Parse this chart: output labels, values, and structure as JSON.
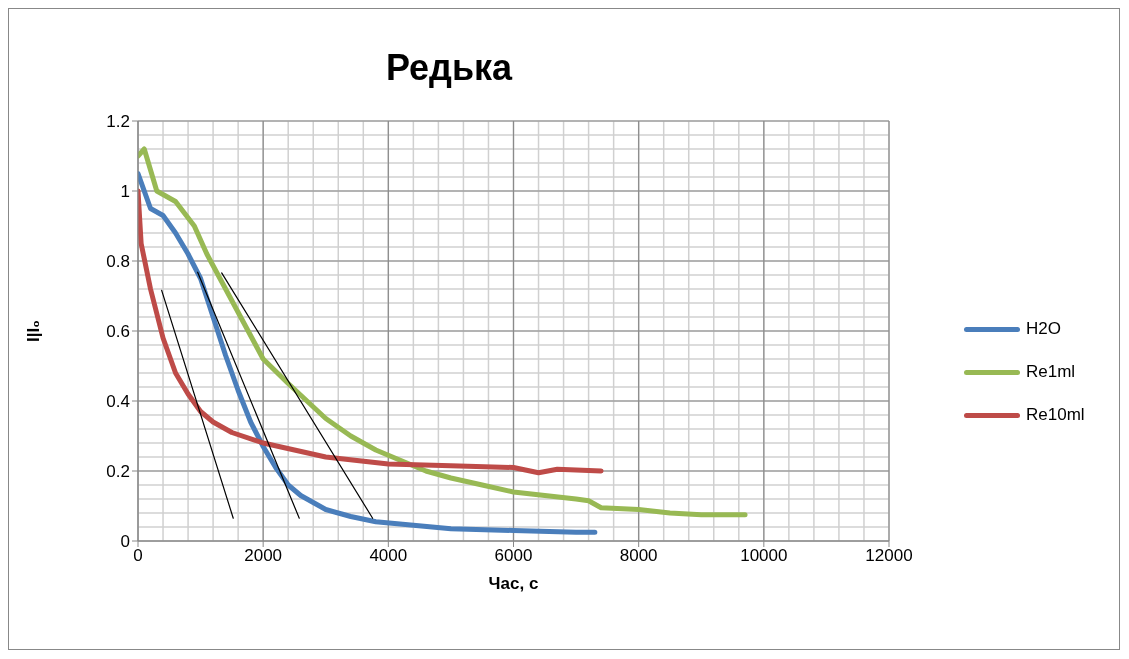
{
  "chart_data": {
    "type": "line",
    "title": "Редька",
    "xlabel": "Час, с",
    "ylabel": "I|I₀",
    "xlim": [
      0,
      12000
    ],
    "xticks": [
      0,
      2000,
      4000,
      6000,
      8000,
      10000,
      12000
    ],
    "ylim": [
      0,
      1.2
    ],
    "yticks": [
      0,
      0.2,
      0.4,
      0.6,
      0.8,
      1,
      1.2
    ],
    "grid": true,
    "legend": "right",
    "series": [
      {
        "name": "H2O",
        "color": "#4a7ebb",
        "x": [
          0,
          200,
          400,
          600,
          800,
          1000,
          1200,
          1400,
          1600,
          1800,
          2000,
          2200,
          2400,
          2600,
          2800,
          3000,
          3400,
          3800,
          4400,
          5000,
          6000,
          7000,
          7300
        ],
        "values": [
          1.05,
          0.95,
          0.93,
          0.88,
          0.82,
          0.75,
          0.64,
          0.53,
          0.43,
          0.34,
          0.27,
          0.21,
          0.16,
          0.13,
          0.11,
          0.09,
          0.07,
          0.055,
          0.045,
          0.035,
          0.03,
          0.025,
          0.025
        ]
      },
      {
        "name": "Re1ml",
        "color": "#98b954",
        "x": [
          0,
          100,
          300,
          600,
          900,
          1100,
          1400,
          1700,
          2000,
          2400,
          2700,
          3000,
          3400,
          3800,
          4200,
          4600,
          5000,
          5500,
          6000,
          6500,
          7000,
          7200,
          7400,
          8000,
          8500,
          9000,
          9700
        ],
        "values": [
          1.1,
          1.12,
          1.0,
          0.97,
          0.9,
          0.82,
          0.72,
          0.62,
          0.52,
          0.45,
          0.4,
          0.35,
          0.3,
          0.26,
          0.23,
          0.2,
          0.18,
          0.16,
          0.14,
          0.13,
          0.12,
          0.115,
          0.095,
          0.09,
          0.08,
          0.075,
          0.075
        ]
      },
      {
        "name": "Re10ml",
        "color": "#be4b48",
        "x": [
          0,
          50,
          200,
          400,
          600,
          800,
          1000,
          1200,
          1500,
          2000,
          2500,
          3000,
          4000,
          5000,
          6000,
          6400,
          6700,
          7400
        ],
        "values": [
          1.0,
          0.85,
          0.72,
          0.58,
          0.48,
          0.42,
          0.37,
          0.34,
          0.31,
          0.28,
          0.26,
          0.24,
          0.22,
          0.215,
          0.21,
          0.195,
          0.205,
          0.2
        ]
      },
      {
        "type": "line",
        "color": "#000000",
        "x": [
          378,
          1522
        ],
        "values": [
          0.716,
          0.065
        ]
      },
      {
        "type": "line",
        "color": "#000000",
        "x": [
          953,
          2577
        ],
        "values": [
          0.768,
          0.065
        ]
      },
      {
        "type": "line",
        "color": "#000000",
        "x": [
          1337,
          3749
        ],
        "values": [
          0.766,
          0.065
        ]
      }
    ]
  }
}
